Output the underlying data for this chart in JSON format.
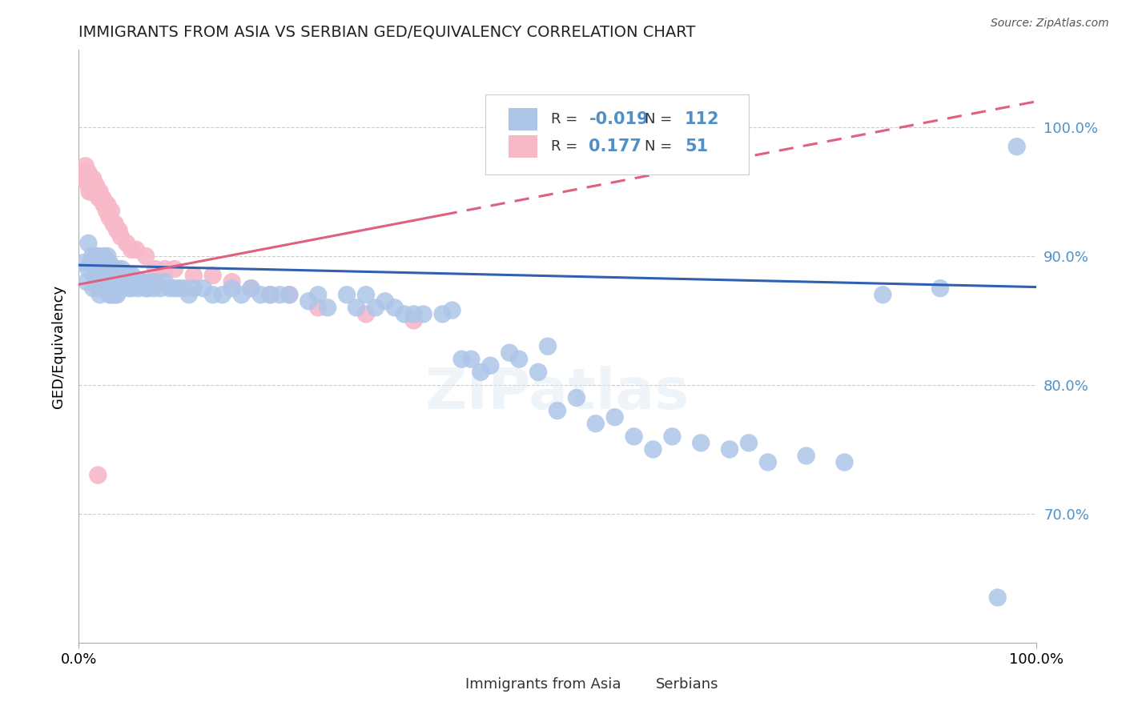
{
  "title": "IMMIGRANTS FROM ASIA VS SERBIAN GED/EQUIVALENCY CORRELATION CHART",
  "source": "Source: ZipAtlas.com",
  "ylabel": "GED/Equivalency",
  "ytick_labels": [
    "70.0%",
    "80.0%",
    "90.0%",
    "100.0%"
  ],
  "ytick_values": [
    0.7,
    0.8,
    0.9,
    1.0
  ],
  "ylim": [
    0.6,
    1.06
  ],
  "xlim": [
    0.0,
    1.0
  ],
  "xtick_left": "0.0%",
  "xtick_right": "100.0%",
  "legend_blue_r": "-0.019",
  "legend_blue_n": "112",
  "legend_pink_r": "0.177",
  "legend_pink_n": "51",
  "legend_blue_label": "Immigrants from Asia",
  "legend_pink_label": "Serbians",
  "blue_scatter_color": "#adc6e8",
  "pink_scatter_color": "#f7b8c8",
  "blue_line_color": "#3060b0",
  "pink_line_color": "#e06080",
  "grid_color": "#cccccc",
  "title_color": "#222222",
  "ytick_color": "#5090c8",
  "source_color": "#555555",
  "background_color": "#ffffff",
  "blue_scatter_x": [
    0.005,
    0.008,
    0.01,
    0.01,
    0.012,
    0.014,
    0.015,
    0.015,
    0.016,
    0.018,
    0.018,
    0.02,
    0.02,
    0.02,
    0.022,
    0.022,
    0.024,
    0.025,
    0.025,
    0.026,
    0.026,
    0.028,
    0.028,
    0.03,
    0.03,
    0.032,
    0.032,
    0.034,
    0.034,
    0.036,
    0.036,
    0.038,
    0.038,
    0.04,
    0.04,
    0.042,
    0.044,
    0.045,
    0.046,
    0.048,
    0.05,
    0.052,
    0.054,
    0.055,
    0.056,
    0.058,
    0.06,
    0.062,
    0.065,
    0.068,
    0.07,
    0.072,
    0.075,
    0.078,
    0.08,
    0.085,
    0.09,
    0.095,
    0.1,
    0.105,
    0.11,
    0.115,
    0.12,
    0.13,
    0.14,
    0.15,
    0.16,
    0.17,
    0.18,
    0.19,
    0.2,
    0.21,
    0.22,
    0.24,
    0.25,
    0.26,
    0.28,
    0.29,
    0.3,
    0.31,
    0.32,
    0.33,
    0.34,
    0.35,
    0.36,
    0.38,
    0.39,
    0.4,
    0.41,
    0.42,
    0.43,
    0.45,
    0.46,
    0.48,
    0.49,
    0.5,
    0.52,
    0.54,
    0.56,
    0.58,
    0.6,
    0.62,
    0.65,
    0.68,
    0.7,
    0.72,
    0.76,
    0.8,
    0.84,
    0.9,
    0.96,
    0.98
  ],
  "blue_scatter_y": [
    0.895,
    0.88,
    0.91,
    0.89,
    0.895,
    0.9,
    0.895,
    0.875,
    0.885,
    0.9,
    0.88,
    0.9,
    0.895,
    0.875,
    0.89,
    0.87,
    0.895,
    0.895,
    0.875,
    0.9,
    0.88,
    0.89,
    0.875,
    0.9,
    0.88,
    0.895,
    0.87,
    0.89,
    0.87,
    0.89,
    0.87,
    0.89,
    0.87,
    0.89,
    0.87,
    0.885,
    0.88,
    0.89,
    0.88,
    0.885,
    0.885,
    0.875,
    0.885,
    0.875,
    0.885,
    0.88,
    0.88,
    0.875,
    0.88,
    0.88,
    0.875,
    0.875,
    0.88,
    0.875,
    0.88,
    0.875,
    0.88,
    0.875,
    0.875,
    0.875,
    0.875,
    0.87,
    0.875,
    0.875,
    0.87,
    0.87,
    0.875,
    0.87,
    0.875,
    0.87,
    0.87,
    0.87,
    0.87,
    0.865,
    0.87,
    0.86,
    0.87,
    0.86,
    0.87,
    0.86,
    0.865,
    0.86,
    0.855,
    0.855,
    0.855,
    0.855,
    0.858,
    0.82,
    0.82,
    0.81,
    0.815,
    0.825,
    0.82,
    0.81,
    0.83,
    0.78,
    0.79,
    0.77,
    0.775,
    0.76,
    0.75,
    0.76,
    0.755,
    0.75,
    0.755,
    0.74,
    0.745,
    0.74,
    0.87,
    0.875,
    0.635,
    0.985
  ],
  "pink_scatter_x": [
    0.005,
    0.006,
    0.007,
    0.008,
    0.009,
    0.01,
    0.01,
    0.011,
    0.012,
    0.013,
    0.014,
    0.015,
    0.016,
    0.017,
    0.018,
    0.019,
    0.02,
    0.021,
    0.022,
    0.023,
    0.024,
    0.025,
    0.026,
    0.027,
    0.028,
    0.029,
    0.03,
    0.032,
    0.034,
    0.036,
    0.038,
    0.04,
    0.042,
    0.044,
    0.05,
    0.055,
    0.06,
    0.07,
    0.08,
    0.09,
    0.1,
    0.12,
    0.14,
    0.16,
    0.18,
    0.2,
    0.22,
    0.25,
    0.3,
    0.35,
    0.02
  ],
  "pink_scatter_y": [
    0.96,
    0.965,
    0.97,
    0.96,
    0.965,
    0.955,
    0.965,
    0.95,
    0.96,
    0.955,
    0.95,
    0.96,
    0.955,
    0.95,
    0.955,
    0.95,
    0.95,
    0.945,
    0.95,
    0.945,
    0.945,
    0.945,
    0.94,
    0.94,
    0.94,
    0.935,
    0.94,
    0.93,
    0.935,
    0.925,
    0.925,
    0.92,
    0.92,
    0.915,
    0.91,
    0.905,
    0.905,
    0.9,
    0.89,
    0.89,
    0.89,
    0.885,
    0.885,
    0.88,
    0.875,
    0.87,
    0.87,
    0.86,
    0.855,
    0.85,
    0.73
  ],
  "blue_trend_x0": 0.0,
  "blue_trend_x1": 1.0,
  "blue_trend_y0": 0.893,
  "blue_trend_y1": 0.876,
  "pink_trend_x0": 0.0,
  "pink_trend_x1": 1.0,
  "pink_trend_y0": 0.878,
  "pink_trend_y1": 1.02,
  "pink_trend_dashed_x0": 0.38,
  "pink_trend_dashed_x1": 1.0
}
